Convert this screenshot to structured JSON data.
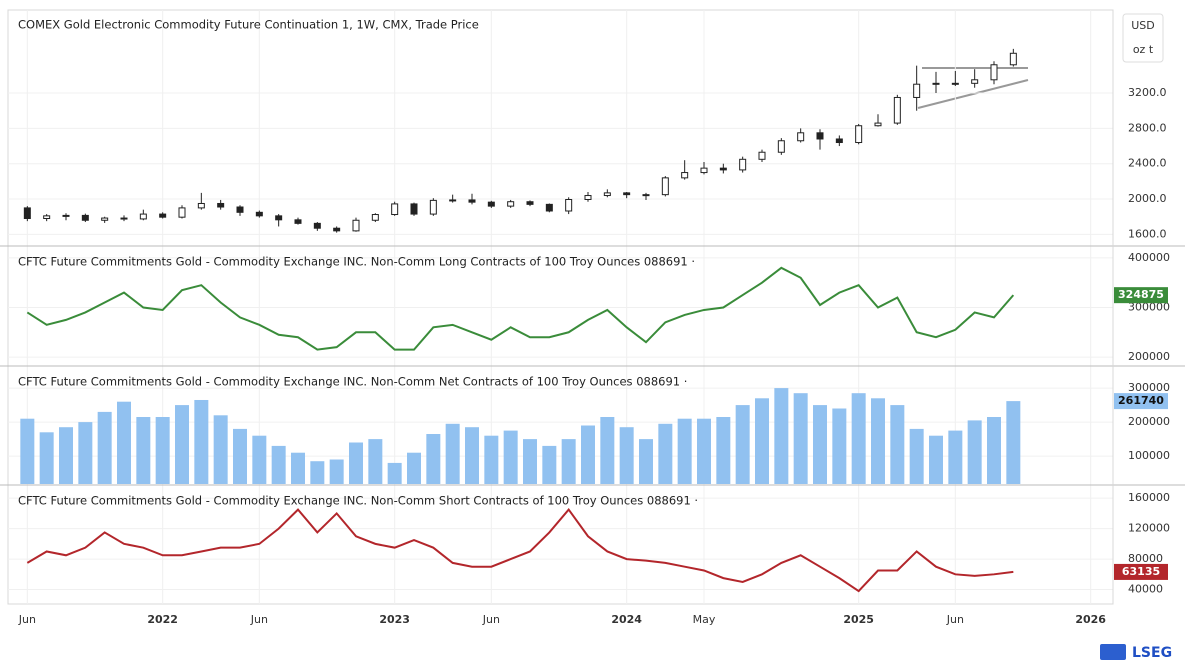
{
  "chart_data": [
    {
      "type": "candlestick",
      "title": "COMEX Gold Electronic Commodity Future Continuation 1, 1W, CMX, Trade Price",
      "currency": "USD",
      "unit": "oz t",
      "x": [
        "2021-06",
        "2021-07",
        "2021-08",
        "2021-09",
        "2021-10",
        "2021-11",
        "2021-12",
        "2022-01",
        "2022-02",
        "2022-03",
        "2022-04",
        "2022-05",
        "2022-06",
        "2022-07",
        "2022-08",
        "2022-09",
        "2022-10",
        "2022-11",
        "2022-12",
        "2023-01",
        "2023-02",
        "2023-03",
        "2023-04",
        "2023-05",
        "2023-06",
        "2023-07",
        "2023-08",
        "2023-09",
        "2023-10",
        "2023-11",
        "2023-12",
        "2024-01",
        "2024-02",
        "2024-03",
        "2024-04",
        "2024-05",
        "2024-06",
        "2024-07",
        "2024-08",
        "2024-09",
        "2024-10",
        "2024-11",
        "2024-12",
        "2025-01",
        "2025-02",
        "2025-03",
        "2025-04",
        "2025-05",
        "2025-06",
        "2025-07",
        "2025-08",
        "2025-09"
      ],
      "open": [
        1900,
        1780,
        1810,
        1815,
        1760,
        1785,
        1775,
        1830,
        1795,
        1900,
        1950,
        1910,
        1850,
        1810,
        1765,
        1725,
        1670,
        1640,
        1760,
        1825,
        1945,
        1830,
        1985,
        1990,
        1965,
        1920,
        1970,
        1940,
        1865,
        1995,
        2040,
        2070,
        2050,
        2050,
        2240,
        2300,
        2350,
        2330,
        2450,
        2530,
        2660,
        2750,
        2680,
        2640,
        2830,
        2860,
        3150,
        3300,
        3310,
        3310,
        3350,
        3520
      ],
      "high": [
        1920,
        1830,
        1840,
        1835,
        1800,
        1815,
        1880,
        1850,
        1930,
        2070,
        1990,
        1930,
        1870,
        1830,
        1790,
        1740,
        1690,
        1790,
        1840,
        1970,
        1960,
        2010,
        2050,
        2060,
        1980,
        1990,
        1985,
        1950,
        2020,
        2080,
        2110,
        2080,
        2070,
        2260,
        2440,
        2420,
        2400,
        2480,
        2560,
        2690,
        2800,
        2790,
        2720,
        2850,
        2960,
        3180,
        3510,
        3440,
        3450,
        3470,
        3560,
        3700
      ],
      "low": [
        1750,
        1750,
        1760,
        1740,
        1730,
        1750,
        1760,
        1780,
        1780,
        1880,
        1880,
        1810,
        1790,
        1690,
        1710,
        1640,
        1620,
        1630,
        1740,
        1810,
        1810,
        1810,
        1960,
        1940,
        1900,
        1900,
        1920,
        1850,
        1830,
        1970,
        2020,
        2010,
        1990,
        2030,
        2220,
        2280,
        2290,
        2300,
        2420,
        2500,
        2640,
        2560,
        2600,
        2620,
        2820,
        2840,
        3000,
        3200,
        3280,
        3260,
        3300,
        3500
      ],
      "close": [
        1780,
        1810,
        1815,
        1760,
        1785,
        1775,
        1830,
        1795,
        1900,
        1950,
        1910,
        1850,
        1810,
        1765,
        1725,
        1670,
        1640,
        1760,
        1825,
        1945,
        1830,
        1985,
        1990,
        1965,
        1920,
        1970,
        1940,
        1865,
        1995,
        2040,
        2070,
        2050,
        2050,
        2240,
        2300,
        2350,
        2330,
        2450,
        2530,
        2660,
        2750,
        2680,
        2640,
        2830,
        2860,
        3150,
        3300,
        3310,
        3310,
        3350,
        3520,
        3650
      ],
      "ylim": [
        1480,
        4140
      ],
      "yticks": [
        {
          "value": 1600,
          "label": "1600.0"
        },
        {
          "value": 2000,
          "label": "2000.0"
        },
        {
          "value": 2400,
          "label": "2400.0"
        },
        {
          "value": 2800,
          "label": "2800.0"
        },
        {
          "value": 3200,
          "label": "3200.0"
        }
      ],
      "grid": true
    },
    {
      "type": "line",
      "title": "CFTC Future Commitments Gold - Commodity Exchange INC. Non-Comm Long Contracts of 100 Troy Ounces 088691 ·",
      "x": [
        "2021-06",
        "2021-07",
        "2021-08",
        "2021-09",
        "2021-10",
        "2021-11",
        "2021-12",
        "2022-01",
        "2022-02",
        "2022-03",
        "2022-04",
        "2022-05",
        "2022-06",
        "2022-07",
        "2022-08",
        "2022-09",
        "2022-10",
        "2022-11",
        "2022-12",
        "2023-01",
        "2023-02",
        "2023-03",
        "2023-04",
        "2023-05",
        "2023-06",
        "2023-07",
        "2023-08",
        "2023-09",
        "2023-10",
        "2023-11",
        "2023-12",
        "2024-01",
        "2024-02",
        "2024-03",
        "2024-04",
        "2024-05",
        "2024-06",
        "2024-07",
        "2024-08",
        "2024-09",
        "2024-10",
        "2024-11",
        "2024-12",
        "2025-01",
        "2025-02",
        "2025-03",
        "2025-04",
        "2025-05",
        "2025-06",
        "2025-07",
        "2025-08",
        "2025-09"
      ],
      "series": [
        {
          "name": "Non-Comm Long",
          "color": "#3a8c3a",
          "values": [
            290000,
            265000,
            275000,
            290000,
            310000,
            330000,
            300000,
            295000,
            335000,
            345000,
            310000,
            280000,
            265000,
            245000,
            240000,
            215000,
            220000,
            250000,
            250000,
            215000,
            215000,
            260000,
            265000,
            250000,
            235000,
            260000,
            240000,
            240000,
            250000,
            275000,
            295000,
            260000,
            230000,
            270000,
            285000,
            295000,
            300000,
            325000,
            350000,
            380000,
            360000,
            305000,
            330000,
            345000,
            300000,
            320000,
            250000,
            240000,
            255000,
            290000,
            280000,
            324875
          ]
        }
      ],
      "ylim": [
        184000,
        422000
      ],
      "yticks": [
        200000,
        300000,
        400000
      ],
      "grid": true
    },
    {
      "type": "bar",
      "title": "CFTC Future Commitments Gold - Commodity Exchange INC. Non-Comm Net Contracts of 100 Troy Ounces 088691 ·",
      "x": [
        "2021-06",
        "2021-07",
        "2021-08",
        "2021-09",
        "2021-10",
        "2021-11",
        "2021-12",
        "2022-01",
        "2022-02",
        "2022-03",
        "2022-04",
        "2022-05",
        "2022-06",
        "2022-07",
        "2022-08",
        "2022-09",
        "2022-10",
        "2022-11",
        "2022-12",
        "2023-01",
        "2023-02",
        "2023-03",
        "2023-04",
        "2023-05",
        "2023-06",
        "2023-07",
        "2023-08",
        "2023-09",
        "2023-10",
        "2023-11",
        "2023-12",
        "2024-01",
        "2024-02",
        "2024-03",
        "2024-04",
        "2024-05",
        "2024-06",
        "2024-07",
        "2024-08",
        "2024-09",
        "2024-10",
        "2024-11",
        "2024-12",
        "2025-01",
        "2025-02",
        "2025-03",
        "2025-04",
        "2025-05",
        "2025-06",
        "2025-07",
        "2025-08",
        "2025-09"
      ],
      "series": [
        {
          "name": "Non-Comm Net",
          "color": "#91c1f0",
          "values": [
            210000,
            170000,
            185000,
            200000,
            230000,
            260000,
            215000,
            215000,
            250000,
            265000,
            220000,
            180000,
            160000,
            130000,
            110000,
            85000,
            90000,
            140000,
            150000,
            80000,
            110000,
            165000,
            195000,
            185000,
            160000,
            175000,
            150000,
            130000,
            150000,
            190000,
            215000,
            185000,
            150000,
            195000,
            210000,
            210000,
            215000,
            250000,
            270000,
            300000,
            285000,
            250000,
            240000,
            285000,
            270000,
            250000,
            180000,
            160000,
            175000,
            205000,
            215000,
            261740
          ]
        }
      ],
      "ylim": [
        18000,
        362000
      ],
      "yticks": [
        100000,
        200000,
        300000
      ],
      "grid": true
    },
    {
      "type": "line",
      "title": "CFTC Future Commitments Gold - Commodity Exchange INC. Non-Comm Short Contracts of 100 Troy Ounces 088691 ·",
      "x": [
        "2021-06",
        "2021-07",
        "2021-08",
        "2021-09",
        "2021-10",
        "2021-11",
        "2021-12",
        "2022-01",
        "2022-02",
        "2022-03",
        "2022-04",
        "2022-05",
        "2022-06",
        "2022-07",
        "2022-08",
        "2022-09",
        "2022-10",
        "2022-11",
        "2022-12",
        "2023-01",
        "2023-02",
        "2023-03",
        "2023-04",
        "2023-05",
        "2023-06",
        "2023-07",
        "2023-08",
        "2023-09",
        "2023-10",
        "2023-11",
        "2023-12",
        "2024-01",
        "2024-02",
        "2024-03",
        "2024-04",
        "2024-05",
        "2024-06",
        "2024-07",
        "2024-08",
        "2024-09",
        "2024-10",
        "2024-11",
        "2024-12",
        "2025-01",
        "2025-02",
        "2025-03",
        "2025-04",
        "2025-05",
        "2025-06",
        "2025-07",
        "2025-08",
        "2025-09"
      ],
      "series": [
        {
          "name": "Non-Comm Short",
          "color": "#b3262b",
          "values": [
            75000,
            90000,
            85000,
            95000,
            115000,
            100000,
            95000,
            85000,
            85000,
            90000,
            95000,
            95000,
            100000,
            120000,
            145000,
            115000,
            140000,
            110000,
            100000,
            95000,
            105000,
            95000,
            75000,
            70000,
            70000,
            80000,
            90000,
            115000,
            145000,
            110000,
            90000,
            80000,
            78000,
            75000,
            70000,
            65000,
            55000,
            50000,
            60000,
            75000,
            85000,
            70000,
            55000,
            38000,
            65000,
            65000,
            90000,
            70000,
            60000,
            58000,
            60000,
            63135
          ]
        }
      ],
      "ylim": [
        21000,
        176000
      ],
      "yticks": [
        40000,
        80000,
        120000,
        160000
      ],
      "grid": true,
      "xlim": [
        "2021-05",
        "2026-02"
      ],
      "xticks": [
        {
          "value": "2021-06",
          "label": "Jun"
        },
        {
          "value": "2022-01",
          "label": "2022"
        },
        {
          "value": "2022-06",
          "label": "Jun"
        },
        {
          "value": "2023-01",
          "label": "2023"
        },
        {
          "value": "2023-06",
          "label": "Jun"
        },
        {
          "value": "2024-01",
          "label": "2024"
        },
        {
          "value": "2024-05",
          "label": "May"
        },
        {
          "value": "2025-01",
          "label": "2025"
        },
        {
          "value": "2025-06",
          "label": "Jun"
        },
        {
          "value": "2026-01",
          "label": "2026"
        }
      ]
    }
  ],
  "logo": "LSEG"
}
